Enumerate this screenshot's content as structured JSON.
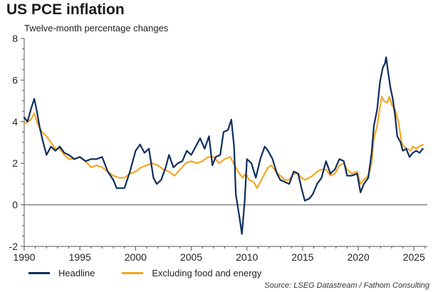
{
  "title": "US PCE inflation",
  "subtitle": "Twelve-month percentage changes",
  "source": "Source: LSEG Datastream / Fathom Consulting",
  "colors": {
    "headline": "#0d2d5e",
    "core": "#f5a623",
    "axis": "#555555"
  },
  "chart_data": {
    "type": "line",
    "title": "US PCE inflation",
    "subtitle": "Twelve-month percentage changes",
    "xlabel": "",
    "ylabel": "",
    "xlim": [
      1990,
      2026.2
    ],
    "ylim": [
      -2,
      8
    ],
    "x_ticks": [
      1990,
      1995,
      2000,
      2005,
      2010,
      2015,
      2020,
      2025
    ],
    "x_tick_labels": [
      "1990",
      "1995",
      "2000",
      "2005",
      "2010",
      "2015",
      "2020",
      "2025"
    ],
    "y_ticks": [
      -2,
      0,
      2,
      4,
      6,
      8
    ],
    "y_tick_labels": [
      "-2",
      "0",
      "2",
      "4",
      "6",
      "8"
    ],
    "legend_position": "bottom",
    "series": [
      {
        "name": "Headline",
        "key": "headline",
        "points": [
          [
            1990.0,
            4.2
          ],
          [
            1990.3,
            4.0
          ],
          [
            1990.6,
            4.6
          ],
          [
            1990.9,
            5.1
          ],
          [
            1991.1,
            4.6
          ],
          [
            1991.4,
            3.7
          ],
          [
            1991.7,
            3.0
          ],
          [
            1992.0,
            2.4
          ],
          [
            1992.4,
            2.8
          ],
          [
            1992.8,
            2.6
          ],
          [
            1993.2,
            2.8
          ],
          [
            1993.6,
            2.5
          ],
          [
            1994.0,
            2.4
          ],
          [
            1994.5,
            2.2
          ],
          [
            1995.0,
            2.3
          ],
          [
            1995.5,
            2.1
          ],
          [
            1996.0,
            2.2
          ],
          [
            1996.5,
            2.2
          ],
          [
            1997.0,
            2.3
          ],
          [
            1997.5,
            1.6
          ],
          [
            1998.0,
            1.2
          ],
          [
            1998.3,
            0.8
          ],
          [
            1998.7,
            0.8
          ],
          [
            1999.0,
            0.8
          ],
          [
            1999.5,
            1.6
          ],
          [
            2000.0,
            2.6
          ],
          [
            2000.4,
            2.9
          ],
          [
            2000.8,
            2.5
          ],
          [
            2001.2,
            2.7
          ],
          [
            2001.6,
            1.3
          ],
          [
            2001.9,
            1.0
          ],
          [
            2002.3,
            1.2
          ],
          [
            2002.7,
            1.8
          ],
          [
            2003.0,
            2.4
          ],
          [
            2003.4,
            1.8
          ],
          [
            2003.8,
            2.0
          ],
          [
            2004.2,
            2.1
          ],
          [
            2004.6,
            2.6
          ],
          [
            2005.0,
            2.4
          ],
          [
            2005.4,
            2.8
          ],
          [
            2005.8,
            3.2
          ],
          [
            2006.2,
            2.7
          ],
          [
            2006.6,
            3.3
          ],
          [
            2006.9,
            1.9
          ],
          [
            2007.2,
            2.3
          ],
          [
            2007.6,
            2.4
          ],
          [
            2007.9,
            3.5
          ],
          [
            2008.3,
            3.6
          ],
          [
            2008.6,
            4.1
          ],
          [
            2008.85,
            2.8
          ],
          [
            2009.0,
            0.5
          ],
          [
            2009.3,
            -0.5
          ],
          [
            2009.55,
            -1.4
          ],
          [
            2009.8,
            0.2
          ],
          [
            2010.0,
            2.2
          ],
          [
            2010.4,
            2.0
          ],
          [
            2010.8,
            1.3
          ],
          [
            2011.2,
            2.2
          ],
          [
            2011.6,
            2.8
          ],
          [
            2011.9,
            2.6
          ],
          [
            2012.3,
            2.2
          ],
          [
            2012.7,
            1.5
          ],
          [
            2013.0,
            1.2
          ],
          [
            2013.4,
            1.1
          ],
          [
            2013.8,
            1.0
          ],
          [
            2014.2,
            1.6
          ],
          [
            2014.6,
            1.5
          ],
          [
            2014.9,
            0.8
          ],
          [
            2015.2,
            0.2
          ],
          [
            2015.6,
            0.3
          ],
          [
            2015.9,
            0.5
          ],
          [
            2016.3,
            1.0
          ],
          [
            2016.7,
            1.3
          ],
          [
            2017.1,
            2.1
          ],
          [
            2017.5,
            1.5
          ],
          [
            2017.9,
            1.7
          ],
          [
            2018.3,
            2.2
          ],
          [
            2018.7,
            2.1
          ],
          [
            2019.0,
            1.4
          ],
          [
            2019.4,
            1.4
          ],
          [
            2019.9,
            1.5
          ],
          [
            2020.2,
            0.6
          ],
          [
            2020.5,
            1.0
          ],
          [
            2020.9,
            1.3
          ],
          [
            2021.2,
            2.5
          ],
          [
            2021.4,
            3.8
          ],
          [
            2021.7,
            4.6
          ],
          [
            2021.95,
            5.9
          ],
          [
            2022.2,
            6.6
          ],
          [
            2022.4,
            6.8
          ],
          [
            2022.5,
            7.1
          ],
          [
            2022.7,
            6.3
          ],
          [
            2022.9,
            5.6
          ],
          [
            2023.1,
            5.1
          ],
          [
            2023.3,
            4.3
          ],
          [
            2023.5,
            3.3
          ],
          [
            2023.8,
            3.0
          ],
          [
            2024.0,
            2.6
          ],
          [
            2024.3,
            2.7
          ],
          [
            2024.6,
            2.3
          ],
          [
            2024.9,
            2.5
          ],
          [
            2025.2,
            2.6
          ],
          [
            2025.5,
            2.5
          ],
          [
            2025.8,
            2.7
          ]
        ]
      },
      {
        "name": "Excluding food and energy",
        "key": "core",
        "points": [
          [
            1990.0,
            3.9
          ],
          [
            1990.3,
            4.0
          ],
          [
            1990.6,
            4.1
          ],
          [
            1990.9,
            4.4
          ],
          [
            1991.2,
            3.9
          ],
          [
            1991.6,
            3.5
          ],
          [
            1992.0,
            3.3
          ],
          [
            1992.4,
            3.0
          ],
          [
            1992.8,
            2.7
          ],
          [
            1993.2,
            2.7
          ],
          [
            1993.6,
            2.4
          ],
          [
            1994.0,
            2.2
          ],
          [
            1994.5,
            2.2
          ],
          [
            1995.0,
            2.3
          ],
          [
            1995.5,
            2.1
          ],
          [
            1996.0,
            1.8
          ],
          [
            1996.5,
            1.9
          ],
          [
            1997.0,
            1.8
          ],
          [
            1997.5,
            1.6
          ],
          [
            1998.0,
            1.4
          ],
          [
            1998.5,
            1.3
          ],
          [
            1999.0,
            1.3
          ],
          [
            1999.5,
            1.5
          ],
          [
            2000.0,
            1.6
          ],
          [
            2000.5,
            1.8
          ],
          [
            2001.0,
            1.9
          ],
          [
            2001.5,
            2.0
          ],
          [
            2002.0,
            1.9
          ],
          [
            2002.5,
            1.7
          ],
          [
            2003.0,
            1.6
          ],
          [
            2003.5,
            1.4
          ],
          [
            2004.0,
            1.7
          ],
          [
            2004.5,
            2.0
          ],
          [
            2005.0,
            2.1
          ],
          [
            2005.5,
            2.0
          ],
          [
            2006.0,
            2.1
          ],
          [
            2006.5,
            2.3
          ],
          [
            2007.0,
            2.3
          ],
          [
            2007.5,
            2.0
          ],
          [
            2008.0,
            2.2
          ],
          [
            2008.5,
            2.3
          ],
          [
            2008.9,
            1.9
          ],
          [
            2009.2,
            1.6
          ],
          [
            2009.6,
            1.3
          ],
          [
            2009.9,
            1.5
          ],
          [
            2010.2,
            1.2
          ],
          [
            2010.6,
            1.1
          ],
          [
            2010.9,
            0.8
          ],
          [
            2011.3,
            1.2
          ],
          [
            2011.7,
            1.6
          ],
          [
            2011.9,
            1.8
          ],
          [
            2012.2,
            1.9
          ],
          [
            2012.6,
            1.6
          ],
          [
            2013.0,
            1.4
          ],
          [
            2013.4,
            1.2
          ],
          [
            2013.8,
            1.2
          ],
          [
            2014.2,
            1.5
          ],
          [
            2014.6,
            1.5
          ],
          [
            2014.9,
            1.3
          ],
          [
            2015.2,
            1.2
          ],
          [
            2015.6,
            1.3
          ],
          [
            2015.9,
            1.4
          ],
          [
            2016.3,
            1.6
          ],
          [
            2016.7,
            1.7
          ],
          [
            2017.1,
            1.7
          ],
          [
            2017.5,
            1.4
          ],
          [
            2017.9,
            1.5
          ],
          [
            2018.3,
            1.9
          ],
          [
            2018.7,
            2.0
          ],
          [
            2019.0,
            1.7
          ],
          [
            2019.4,
            1.5
          ],
          [
            2019.9,
            1.6
          ],
          [
            2020.2,
            1.0
          ],
          [
            2020.5,
            1.2
          ],
          [
            2020.9,
            1.4
          ],
          [
            2021.2,
            2.0
          ],
          [
            2021.4,
            3.2
          ],
          [
            2021.7,
            3.8
          ],
          [
            2021.95,
            4.7
          ],
          [
            2022.1,
            5.2
          ],
          [
            2022.3,
            5.0
          ],
          [
            2022.6,
            4.9
          ],
          [
            2022.8,
            5.2
          ],
          [
            2023.0,
            4.8
          ],
          [
            2023.3,
            4.6
          ],
          [
            2023.6,
            4.0
          ],
          [
            2023.9,
            3.0
          ],
          [
            2024.1,
            2.8
          ],
          [
            2024.4,
            2.7
          ],
          [
            2024.7,
            2.6
          ],
          [
            2024.9,
            2.8
          ],
          [
            2025.2,
            2.7
          ],
          [
            2025.5,
            2.8
          ],
          [
            2025.8,
            2.9
          ]
        ]
      }
    ]
  }
}
